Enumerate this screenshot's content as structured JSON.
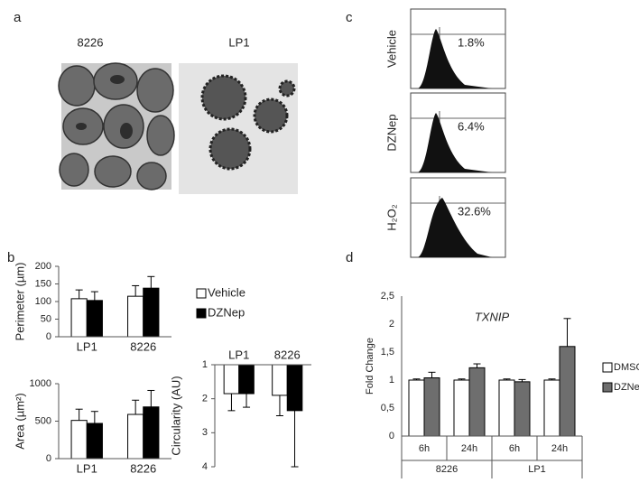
{
  "panels": {
    "a": "a",
    "b": "b",
    "c": "c",
    "d": "d"
  },
  "images": [
    {
      "label": "8226"
    },
    {
      "label": "LP1"
    }
  ],
  "flow": [
    {
      "label": "Vehicle",
      "percent": "1.8%"
    },
    {
      "label": "DZNep",
      "percent": "6.4%"
    },
    {
      "label": "H₂O₂",
      "percent": "32.6%"
    }
  ],
  "chart_data": [
    {
      "type": "bar",
      "y_label": "Perimeter (µm)",
      "categories": [
        "LP1",
        "8226"
      ],
      "series": [
        {
          "name": "Vehicle",
          "color": "#ffffff",
          "values": [
            108,
            115
          ],
          "errors": [
            25,
            30
          ]
        },
        {
          "name": "DZNep",
          "color": "#000000",
          "values": [
            103,
            138
          ],
          "errors": [
            25,
            33
          ]
        }
      ],
      "ylim": [
        0,
        200
      ],
      "yticks": [
        0,
        50,
        100,
        150,
        200
      ],
      "grid": false,
      "legend": "right"
    },
    {
      "type": "bar",
      "y_label": "Area (µm²)",
      "categories": [
        "LP1",
        "8226"
      ],
      "series": [
        {
          "color": "#ffffff",
          "values": [
            510,
            590
          ],
          "errors": [
            150,
            190
          ]
        },
        {
          "color": "#000000",
          "values": [
            470,
            690
          ],
          "errors": [
            160,
            220
          ]
        }
      ],
      "ylim": [
        0,
        1000
      ],
      "yticks": [
        0,
        500,
        1000
      ],
      "grid": false
    },
    {
      "type": "bar",
      "y_label": "Circularity (AU)",
      "categories": [
        "LP1",
        "8226"
      ],
      "x_labels": "top",
      "series": [
        {
          "color": "#ffffff",
          "values": [
            1.85,
            1.9
          ],
          "errors": [
            0.5,
            0.6
          ]
        },
        {
          "color": "#000000",
          "values": [
            1.85,
            2.35
          ],
          "errors": [
            0.4,
            1.65
          ]
        }
      ],
      "ylim": [
        4,
        1
      ],
      "yticks": [
        1,
        2,
        3,
        4
      ],
      "grid": false
    },
    {
      "type": "bar",
      "title": "TXNIP",
      "y_label": "Fold Change",
      "categories": [
        "6h",
        "24h",
        "6h",
        "24h"
      ],
      "groups": [
        "8226",
        "LP1"
      ],
      "series": [
        {
          "name": "DMSO",
          "color": "#ffffff",
          "values": [
            1,
            1,
            1,
            1
          ],
          "errors": [
            0.02,
            0.02,
            0.02,
            0.02
          ]
        },
        {
          "name": "DZNep",
          "color": "#6e6e6e",
          "values": [
            1.04,
            1.22,
            0.97,
            1.6
          ],
          "errors": [
            0.1,
            0.07,
            0.04,
            0.5
          ]
        }
      ],
      "ylim": [
        0,
        2.5
      ],
      "yticks": [
        0,
        {
          "value": 0.5,
          "label": "0,5"
        },
        1,
        {
          "value": 1.5,
          "label": "1,5"
        },
        2,
        {
          "value": 2.5,
          "label": "2,5"
        }
      ],
      "grid": false,
      "legend": "right"
    }
  ]
}
